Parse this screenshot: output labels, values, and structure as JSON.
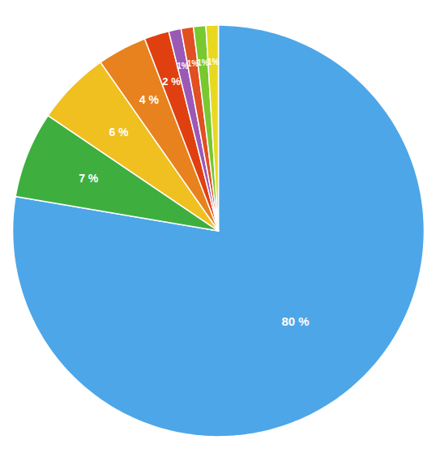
{
  "chart_data": {
    "type": "pie",
    "values": [
      80,
      7,
      6,
      4,
      2,
      1,
      1,
      1,
      1
    ],
    "value_labels": [
      "80 %",
      "7 %",
      "6 %",
      "4 %",
      "2 %",
      "1%",
      "1%",
      "1%",
      "1%"
    ],
    "colors": [
      "#4DA6E8",
      "#3EAF3E",
      "#F0C020",
      "#E8821E",
      "#E04010",
      "#9B59B6",
      "#E05020",
      "#78C830",
      "#E8D820"
    ],
    "data_labels": true
  }
}
